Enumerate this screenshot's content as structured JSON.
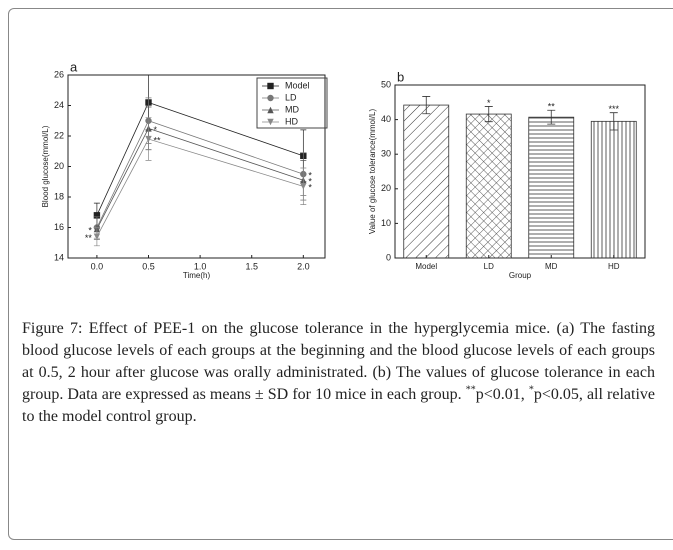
{
  "chart_data": [
    {
      "type": "line",
      "panel": "a",
      "ylabel": "Blood glucose(mmol/L)",
      "xlabel": "Time(h)",
      "x": [
        0,
        0.5,
        2
      ],
      "xlim": [
        -0.28,
        2.21
      ],
      "xticks": [
        {
          "value": 0,
          "label": "0.0"
        },
        {
          "value": 0.5,
          "label": "0.5"
        },
        {
          "value": 1,
          "label": "1.0"
        },
        {
          "value": 1.5,
          "label": "1.5"
        },
        {
          "value": 2,
          "label": "2.0"
        }
      ],
      "ylim": [
        14,
        26
      ],
      "yticks": [
        14,
        16,
        18,
        20,
        22,
        24,
        26
      ],
      "legend": "upper right",
      "series": [
        {
          "name": "Model",
          "color": "#222222",
          "marker": "square",
          "values": [
            16.8,
            24.2,
            20.7
          ],
          "errors": [
            0.8,
            1.8,
            1.7
          ],
          "labels": [
            null,
            null,
            null
          ]
        },
        {
          "name": "LD",
          "color": "#777777",
          "marker": "circle",
          "values": [
            16.0,
            23.0,
            19.5
          ],
          "errors": [
            0.7,
            1.5,
            1.4
          ],
          "labels": [
            null,
            null,
            "*"
          ]
        },
        {
          "name": "MD",
          "color": "#555555",
          "marker": "triangle-up",
          "values": [
            15.9,
            22.5,
            19.1
          ],
          "errors": [
            0.7,
            1.4,
            1.3
          ],
          "labels": [
            "*",
            "*",
            "*"
          ]
        },
        {
          "name": "HD",
          "color": "#888888",
          "marker": "triangle-down",
          "values": [
            15.4,
            21.8,
            18.7
          ],
          "errors": [
            0.6,
            1.4,
            1.2
          ],
          "labels": [
            "**",
            "**",
            "*"
          ]
        }
      ]
    },
    {
      "type": "bar",
      "panel": "b",
      "ylabel": "Value of glucose tolerance(mmol/L)",
      "xlabel": "Group",
      "categories": [
        "Model",
        "LD",
        "MD",
        "HD"
      ],
      "values": [
        44.2,
        41.6,
        40.7,
        39.5
      ],
      "errors": [
        2.5,
        2.2,
        2.0,
        2.5
      ],
      "labels": [
        null,
        "*",
        "**",
        "***"
      ],
      "color": "#333333",
      "ylim": [
        0,
        50
      ],
      "yticks": [
        0,
        10,
        20,
        30,
        40,
        50
      ]
    }
  ],
  "caption": {
    "text1": "Figure 7: Effect of PEE-1 on the glucose tolerance in the hyperglycemia mice. (a) The fasting blood glucose levels of each groups at the beginning and the blood glucose levels of each groups at 0.5, 2 hour after glucose was orally administrated. (b) The values of glucose tolerance in each group. Data are expressed as means ± SD for 10 mice in each group. ",
    "sup1": "**",
    "text2": "p<0.01, ",
    "sup2": "*",
    "text3": "p<0.05, all relative to the model control group."
  }
}
